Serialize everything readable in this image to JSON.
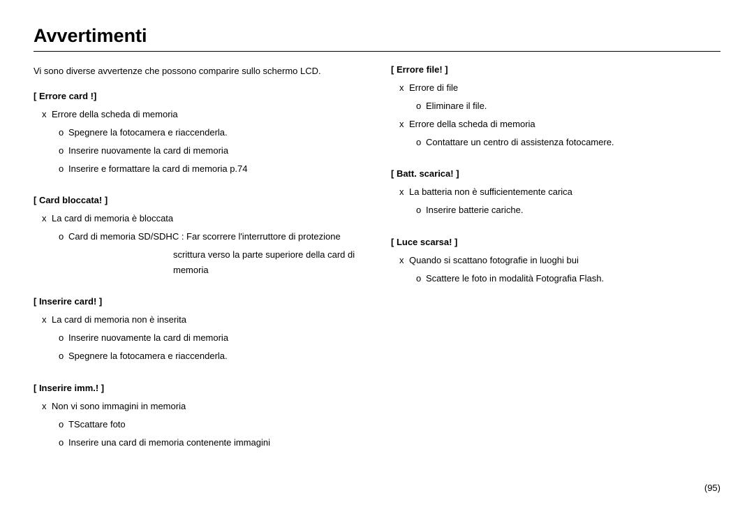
{
  "title": "Avvertimenti",
  "intro": "Vi sono diverse avvertenze che possono comparire sullo schermo LCD.",
  "page_number": "(95)",
  "left": [
    {
      "heading": "[  Errore card  !]",
      "causes": [
        {
          "text": "Errore della scheda di memoria",
          "remedies": [
            "Spegnere la fotocamera e riaccenderla.",
            "Inserire nuovamente la card di memoria",
            "Inserire e formattare la card di memoria  p.74"
          ]
        }
      ]
    },
    {
      "heading": "[  Card  bloccata!  ]",
      "causes": [
        {
          "text": "La card di memoria è bloccata",
          "remedies_sd": [
            "Card di memoria SD/SDHC :  Far scorrere l'interruttore di protezione",
            "scrittura verso la parte superiore della card di",
            "memoria"
          ]
        }
      ]
    },
    {
      "heading": "[  Inserire card!  ]",
      "causes": [
        {
          "text": "La card di memoria non è inserita",
          "remedies": [
            "Inserire nuovamente la card di memoria",
            "Spegnere la fotocamera e riaccenderla."
          ]
        }
      ]
    },
    {
      "heading": "[  Inserire imm.!  ]",
      "causes": [
        {
          "text": "Non vi sono immagini in memoria",
          "remedies": [
            "TScattare foto",
            "Inserire una card di memoria contenente immagini"
          ]
        }
      ]
    }
  ],
  "right": [
    {
      "heading": "[  Errore file!  ]",
      "causes": [
        {
          "text": "Errore di file",
          "remedies": [
            "Eliminare il file."
          ]
        },
        {
          "text": "Errore della scheda di memoria",
          "remedies": [
            "Contattare un centro di assistenza fotocamere."
          ]
        }
      ]
    },
    {
      "heading": "[  Batt. scarica!  ]",
      "causes": [
        {
          "text": "La batteria non è sufficientemente carica",
          "remedies": [
            "Inserire batterie cariche."
          ]
        }
      ]
    },
    {
      "heading": "[  Luce scarsa!  ]",
      "causes": [
        {
          "text": "Quando si scattano fotografie in luoghi bui",
          "remedies": [
            "Scattere le foto in modalità Fotografia Flash."
          ]
        }
      ]
    }
  ]
}
